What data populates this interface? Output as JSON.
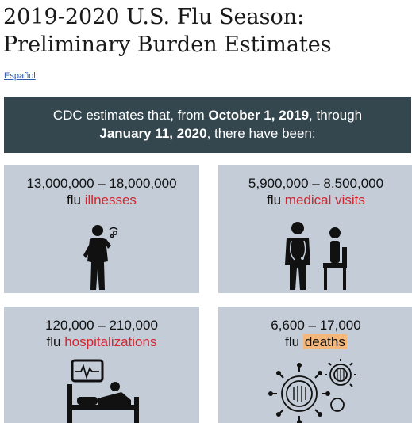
{
  "page": {
    "title_line1": "2019-2020 U.S. Flu Season:",
    "title_line2": "Preliminary Burden Estimates",
    "language_link": "Español"
  },
  "banner": {
    "prefix": "CDC estimates that, from ",
    "start_date": "October 1, 2019",
    "mid": ", through",
    "end_date": "January 11, 2020",
    "suffix": ", there have been:"
  },
  "cards": [
    {
      "range": "13,000,000 – 18,000,000",
      "prefix": "flu ",
      "metric": "illnesses",
      "icon": "sick-person-icon"
    },
    {
      "range": "5,900,000 – 8,500,000",
      "prefix": "flu ",
      "metric": "medical visits",
      "icon": "doctor-patient-icon"
    },
    {
      "range": "120,000 – 210,000",
      "prefix": "flu ",
      "metric": "hospitalizations",
      "icon": "hospital-bed-icon"
    },
    {
      "range": "6,600 – 17,000",
      "prefix": "flu ",
      "metric": "deaths",
      "icon": "virus-icon"
    }
  ],
  "colors": {
    "banner_bg": "#34474f",
    "card_bg": "#c3ccd7",
    "accent_red": "#d22630",
    "highlight": "#f3b77c"
  }
}
